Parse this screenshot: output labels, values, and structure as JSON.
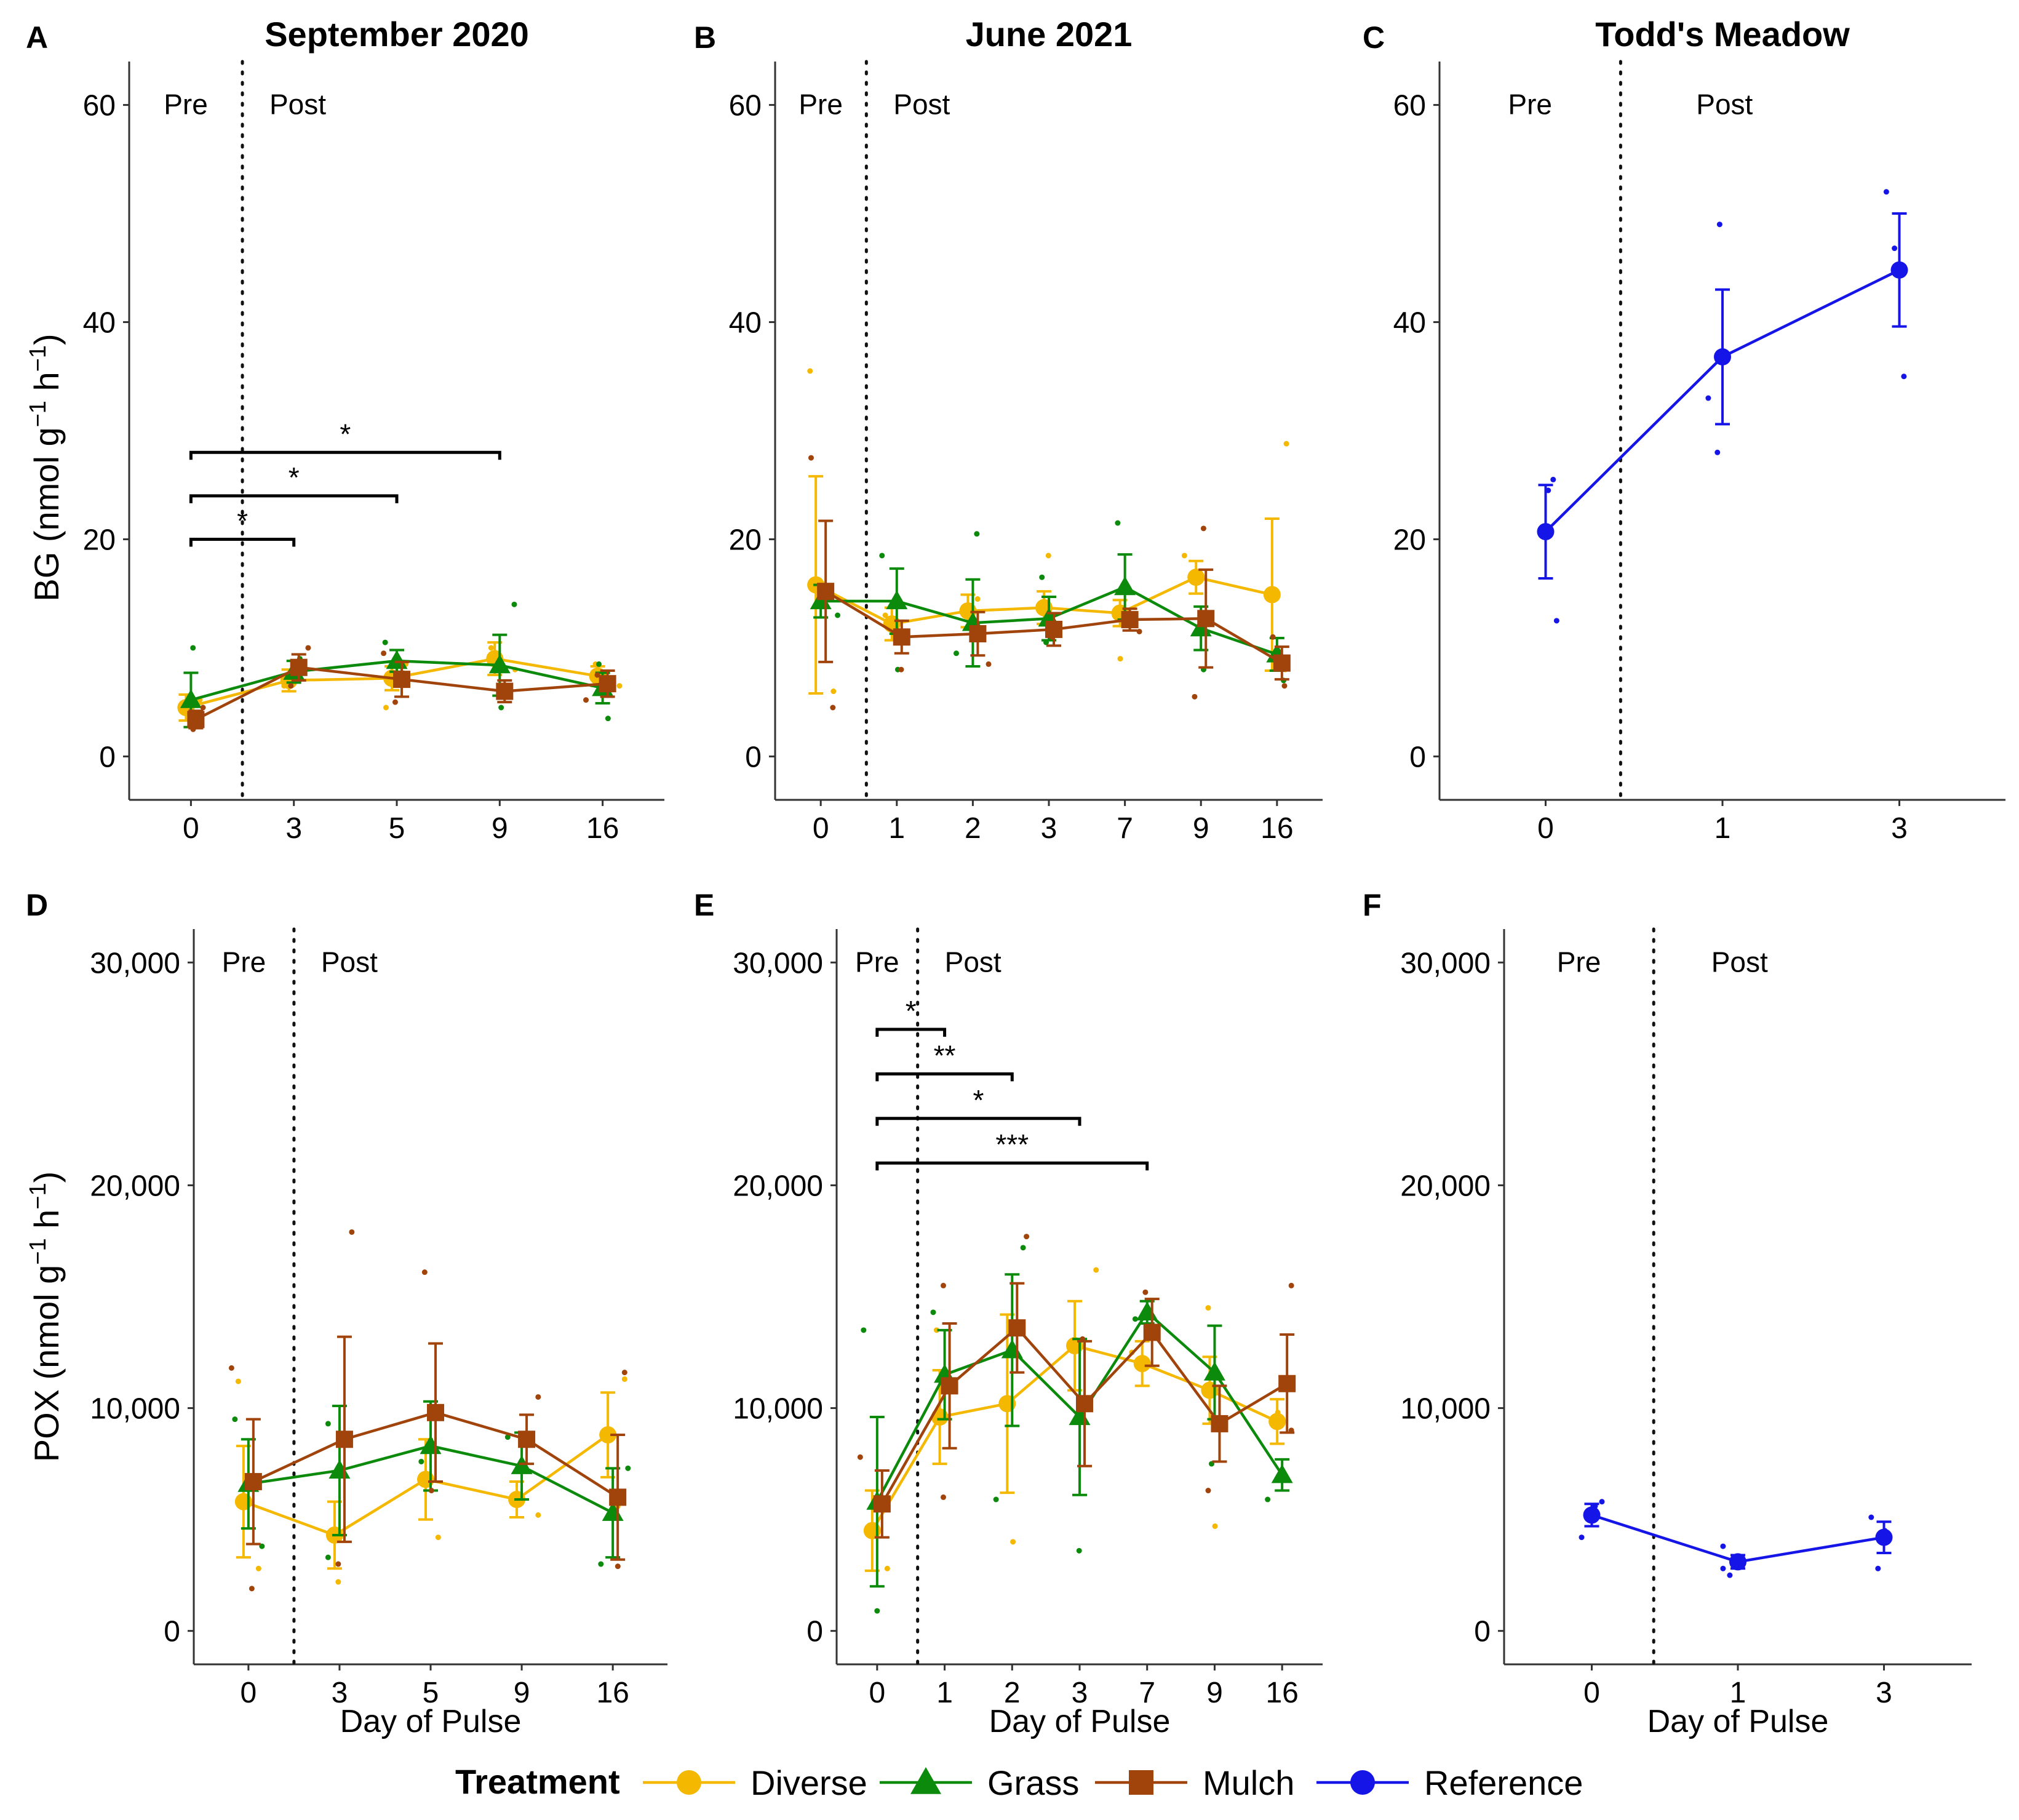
{
  "colors": {
    "Diverse": "#f5b800",
    "Grass": "#0c8a0c",
    "Mulch": "#a0440c",
    "Reference": "#1515e8"
  },
  "legend": {
    "title": "Treatment",
    "items": [
      {
        "name": "Diverse",
        "marker": "circle"
      },
      {
        "name": "Grass",
        "marker": "triangle"
      },
      {
        "name": "Mulch",
        "marker": "square"
      },
      {
        "name": "Reference",
        "marker": "circle"
      }
    ]
  },
  "y_titles": {
    "top_prefix": "BG (nmol g",
    "bottom_prefix": "POX (nmol g",
    "exp": "−1",
    "mid": " h",
    "close": ")"
  },
  "chart_data": [
    {
      "id": "A",
      "letter": "A",
      "title": "September 2020",
      "type": "line",
      "xlabel": "",
      "ylim": [
        -4,
        64
      ],
      "yticks": [
        0,
        20,
        40,
        60
      ],
      "ytick_labels": [
        "0",
        "20",
        "40",
        "60"
      ],
      "categories": [
        "0",
        "3",
        "5",
        "9",
        "16"
      ],
      "divider_after": 0,
      "pre_label": "Pre",
      "post_label": "Post",
      "series": [
        {
          "name": "Diverse",
          "values": [
            4.5,
            7.0,
            7.2,
            9.0,
            7.4
          ],
          "err": [
            1.2,
            1.0,
            1.1,
            1.5,
            0.9
          ],
          "points": [
            [
              0,
              4.0
            ],
            [
              0,
              5.2
            ],
            [
              1,
              6.5
            ],
            [
              2,
              8.5
            ],
            [
              2,
              4.5
            ],
            [
              3,
              10.0
            ],
            [
              3,
              8.0
            ],
            [
              4,
              8.5
            ],
            [
              4,
              6.5
            ]
          ]
        },
        {
          "name": "Grass",
          "values": [
            5.2,
            7.8,
            8.8,
            8.4,
            6.3
          ],
          "err": [
            2.5,
            1.0,
            1.0,
            2.8,
            1.4
          ],
          "points": [
            [
              0,
              10.0
            ],
            [
              0,
              3.5
            ],
            [
              1,
              9.0
            ],
            [
              2,
              10.5
            ],
            [
              2,
              7.0
            ],
            [
              3,
              14.0
            ],
            [
              3,
              4.5
            ],
            [
              4,
              3.5
            ],
            [
              4,
              8.5
            ]
          ]
        },
        {
          "name": "Mulch",
          "values": [
            3.4,
            8.2,
            7.1,
            6.0,
            6.7
          ],
          "err": [
            0.8,
            1.2,
            1.6,
            1.0,
            1.2
          ],
          "points": [
            [
              0,
              2.5
            ],
            [
              0,
              4.5
            ],
            [
              1,
              10.0
            ],
            [
              1,
              6.5
            ],
            [
              2,
              5.0
            ],
            [
              2,
              9.5
            ],
            [
              3,
              5.5
            ],
            [
              4,
              5.2
            ],
            [
              4,
              7.5
            ]
          ]
        }
      ],
      "sig": [
        {
          "from": 0,
          "to": 1,
          "level": 20,
          "label": "*"
        },
        {
          "from": 0,
          "to": 2,
          "level": 24,
          "label": "*"
        },
        {
          "from": 0,
          "to": 3,
          "level": 28,
          "label": "*"
        }
      ]
    },
    {
      "id": "B",
      "letter": "B",
      "title": "June 2021",
      "type": "line",
      "xlabel": "",
      "ylim": [
        -4,
        64
      ],
      "yticks": [
        0,
        20,
        40,
        60
      ],
      "ytick_labels": [
        "0",
        "20",
        "40",
        "60"
      ],
      "categories": [
        "0",
        "1",
        "2",
        "3",
        "7",
        "9",
        "16"
      ],
      "divider_after": 0,
      "pre_label": "Pre",
      "post_label": "Post",
      "series": [
        {
          "name": "Diverse",
          "values": [
            15.8,
            12.2,
            13.4,
            13.7,
            13.2,
            16.5,
            14.9
          ],
          "err": [
            10.0,
            1.5,
            1.5,
            1.5,
            1.2,
            1.5,
            7.0
          ],
          "points": [
            [
              0,
              35.5
            ],
            [
              0,
              6.0
            ],
            [
              1,
              13.0
            ],
            [
              2,
              14.5
            ],
            [
              3,
              18.5
            ],
            [
              3,
              12.0
            ],
            [
              4,
              9.0
            ],
            [
              5,
              18.5
            ],
            [
              6,
              28.8
            ],
            [
              6,
              8.0
            ]
          ]
        },
        {
          "name": "Grass",
          "values": [
            14.3,
            14.3,
            12.3,
            12.7,
            15.6,
            11.8,
            9.4
          ],
          "err": [
            1.5,
            3.0,
            4.0,
            2.0,
            3.0,
            2.0,
            1.5
          ],
          "points": [
            [
              0,
              13.0
            ],
            [
              1,
              18.5
            ],
            [
              1,
              8.0
            ],
            [
              2,
              20.5
            ],
            [
              2,
              9.5
            ],
            [
              3,
              16.5
            ],
            [
              3,
              10.5
            ],
            [
              4,
              21.5
            ],
            [
              5,
              8.0
            ],
            [
              6,
              7.0
            ]
          ]
        },
        {
          "name": "Mulch",
          "values": [
            15.2,
            11.0,
            11.3,
            11.7,
            12.6,
            12.7,
            8.6
          ],
          "err": [
            6.5,
            1.5,
            2.0,
            1.5,
            1.0,
            4.5,
            1.5
          ],
          "points": [
            [
              0,
              27.5
            ],
            [
              0,
              4.5
            ],
            [
              1,
              8.0
            ],
            [
              2,
              8.5
            ],
            [
              3,
              11.0
            ],
            [
              4,
              11.5
            ],
            [
              5,
              21.0
            ],
            [
              5,
              5.5
            ],
            [
              6,
              6.5
            ],
            [
              6,
              11.0
            ]
          ]
        }
      ],
      "sig": []
    },
    {
      "id": "C",
      "letter": "C",
      "title": "Todd's Meadow",
      "type": "line",
      "xlabel": "",
      "ylim": [
        -4,
        64
      ],
      "yticks": [
        0,
        20,
        40,
        60
      ],
      "ytick_labels": [
        "0",
        "20",
        "40",
        "60"
      ],
      "categories": [
        "0",
        "1",
        "3"
      ],
      "divider_pos": 0.32,
      "pre_label": "Pre",
      "post_label": "Post",
      "series": [
        {
          "name": "Reference",
          "values": [
            20.7,
            36.8,
            44.8
          ],
          "err": [
            4.3,
            6.2,
            5.2
          ],
          "points": [
            [
              0,
              25.5
            ],
            [
              0,
              24.5
            ],
            [
              0,
              12.5
            ],
            [
              1,
              49.0
            ],
            [
              1,
              33.0
            ],
            [
              1,
              28.0
            ],
            [
              2,
              52.0
            ],
            [
              2,
              46.8
            ],
            [
              2,
              35.0
            ]
          ]
        }
      ],
      "sig": []
    },
    {
      "id": "D",
      "letter": "D",
      "title": "",
      "type": "line",
      "xlabel": "Day of Pulse",
      "ylim": [
        -1500,
        31500
      ],
      "yticks": [
        0,
        10000,
        20000,
        30000
      ],
      "ytick_labels": [
        "0",
        "10,000",
        "20,000",
        "30,000"
      ],
      "categories": [
        "0",
        "3",
        "5",
        "9",
        "16"
      ],
      "divider_after": 0,
      "pre_label": "Pre",
      "post_label": "Post",
      "series": [
        {
          "name": "Diverse",
          "values": [
            5800,
            4300,
            6800,
            5900,
            8800
          ],
          "err": [
            2500,
            1500,
            1800,
            800,
            1900
          ],
          "points": [
            [
              0,
              11200
            ],
            [
              0,
              2800
            ],
            [
              1,
              2200
            ],
            [
              2,
              4200
            ],
            [
              3,
              5200
            ],
            [
              4,
              11300
            ],
            [
              4,
              5600
            ]
          ]
        },
        {
          "name": "Grass",
          "values": [
            6600,
            7200,
            8300,
            7400,
            5300
          ],
          "err": [
            2000,
            2900,
            2000,
            1500,
            2000
          ],
          "points": [
            [
              0,
              9500
            ],
            [
              0,
              3800
            ],
            [
              1,
              9300
            ],
            [
              1,
              3300
            ],
            [
              2,
              7600
            ],
            [
              3,
              8700
            ],
            [
              4,
              3000
            ],
            [
              4,
              7300
            ]
          ]
        },
        {
          "name": "Mulch",
          "values": [
            6700,
            8600,
            9800,
            8600,
            6000
          ],
          "err": [
            2800,
            4600,
            3100,
            1100,
            2800
          ],
          "points": [
            [
              0,
              11800
            ],
            [
              0,
              1900
            ],
            [
              1,
              17900
            ],
            [
              1,
              3000
            ],
            [
              2,
              16100
            ],
            [
              2,
              6300
            ],
            [
              3,
              10500
            ],
            [
              4,
              11600
            ],
            [
              4,
              2900
            ]
          ]
        }
      ],
      "sig": []
    },
    {
      "id": "E",
      "letter": "E",
      "title": "",
      "type": "line",
      "xlabel": "Day of Pulse",
      "ylim": [
        -1500,
        31500
      ],
      "yticks": [
        0,
        10000,
        20000,
        30000
      ],
      "ytick_labels": [
        "0",
        "10,000",
        "20,000",
        "30,000"
      ],
      "categories": [
        "0",
        "1",
        "2",
        "3",
        "7",
        "9",
        "16"
      ],
      "divider_after": 0,
      "pre_label": "Pre",
      "post_label": "Post",
      "series": [
        {
          "name": "Diverse",
          "values": [
            4500,
            9600,
            10200,
            12800,
            12000,
            10800,
            9400
          ],
          "err": [
            1800,
            2100,
            4000,
            2000,
            1000,
            1500,
            1000
          ],
          "points": [
            [
              0,
              2800
            ],
            [
              1,
              13500
            ],
            [
              2,
              4000
            ],
            [
              3,
              16200
            ],
            [
              4,
              12500
            ],
            [
              5,
              14500
            ],
            [
              5,
              4700
            ],
            [
              6,
              9800
            ]
          ]
        },
        {
          "name": "Grass",
          "values": [
            5800,
            11500,
            12600,
            9600,
            14300,
            11600,
            7000
          ],
          "err": [
            3800,
            2000,
            3400,
            3500,
            500,
            2100,
            700
          ],
          "points": [
            [
              0,
              13500
            ],
            [
              0,
              900
            ],
            [
              1,
              14300
            ],
            [
              2,
              17200
            ],
            [
              2,
              5900
            ],
            [
              3,
              3600
            ],
            [
              4,
              14000
            ],
            [
              5,
              7500
            ],
            [
              6,
              5900
            ]
          ]
        },
        {
          "name": "Mulch",
          "values": [
            5700,
            11000,
            13600,
            10200,
            13400,
            9300,
            11100
          ],
          "err": [
            1500,
            2800,
            2000,
            2800,
            1500,
            1700,
            2200
          ],
          "points": [
            [
              0,
              7800
            ],
            [
              1,
              15500
            ],
            [
              1,
              6000
            ],
            [
              2,
              17700
            ],
            [
              3,
              13100
            ],
            [
              4,
              15200
            ],
            [
              5,
              6300
            ],
            [
              6,
              15500
            ],
            [
              6,
              9000
            ]
          ]
        }
      ],
      "sig": [
        {
          "from": 0,
          "to": 1,
          "level": 27000,
          "label": "*"
        },
        {
          "from": 0,
          "to": 2,
          "level": 25000,
          "label": "**"
        },
        {
          "from": 0,
          "to": 3,
          "level": 23000,
          "label": "*"
        },
        {
          "from": 0,
          "to": 4,
          "level": 21000,
          "label": "***"
        }
      ]
    },
    {
      "id": "F",
      "letter": "F",
      "title": "",
      "type": "line",
      "xlabel": "Day of Pulse",
      "ylim": [
        -1500,
        31500
      ],
      "yticks": [
        0,
        10000,
        20000,
        30000
      ],
      "ytick_labels": [
        "0",
        "10,000",
        "20,000",
        "30,000"
      ],
      "categories": [
        "0",
        "1",
        "3"
      ],
      "divider_pos": 0.32,
      "pre_label": "Pre",
      "post_label": "Post",
      "series": [
        {
          "name": "Reference",
          "values": [
            5200,
            3100,
            4200
          ],
          "err": [
            500,
            300,
            700
          ],
          "points": [
            [
              0,
              5800
            ],
            [
              0,
              5600
            ],
            [
              0,
              4200
            ],
            [
              1,
              2800
            ],
            [
              1,
              3800
            ],
            [
              1,
              2500
            ],
            [
              2,
              5100
            ],
            [
              2,
              4500
            ],
            [
              2,
              2800
            ]
          ]
        }
      ],
      "sig": []
    }
  ]
}
